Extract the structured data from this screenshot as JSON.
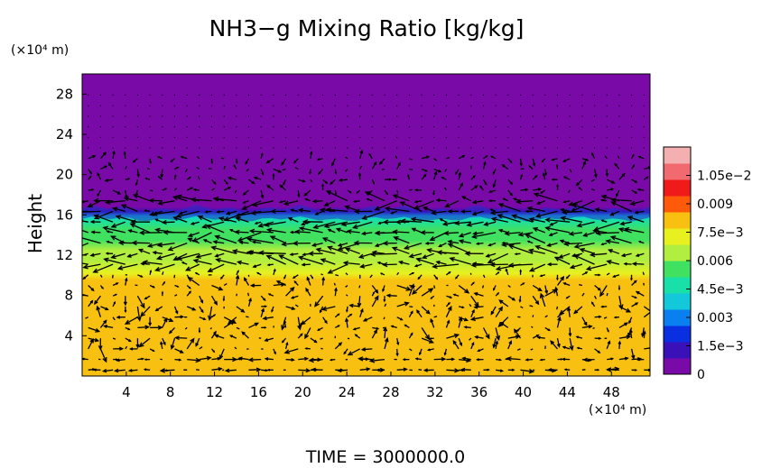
{
  "chart_data": {
    "type": "heatmap",
    "title": "NH3−g Mixing Ratio [kg/kg]",
    "ylabel": "Height",
    "y_unit": "(×10⁴ m)",
    "x_unit": "(×10⁴ m)",
    "footer": "TIME = 3000000.0",
    "xlim": [
      0,
      51.5
    ],
    "ylim": [
      0,
      30
    ],
    "x_ticks": [
      "4",
      "8",
      "12",
      "16",
      "20",
      "24",
      "28",
      "32",
      "36",
      "40",
      "44",
      "48"
    ],
    "x_tick_values": [
      4,
      8,
      12,
      16,
      20,
      24,
      28,
      32,
      36,
      40,
      44,
      48
    ],
    "y_ticks": [
      "4",
      "8",
      "12",
      "16",
      "20",
      "24",
      "28"
    ],
    "y_tick_values": [
      4,
      8,
      12,
      16,
      20,
      24,
      28
    ],
    "colorbar": {
      "ticks": [
        "0",
        "1.5e−3",
        "0.003",
        "4.5e−3",
        "0.006",
        "7.5e−3",
        "0.009",
        "1.05e−2"
      ],
      "tick_values": [
        0,
        0.0015,
        0.003,
        0.0045,
        0.006,
        0.0075,
        0.009,
        0.0105
      ],
      "range": [
        0,
        0.012
      ],
      "colors": [
        "#7a0aa8",
        "#3a10b8",
        "#0a2fe0",
        "#0a7ff0",
        "#13c8d8",
        "#19e0a8",
        "#40e060",
        "#b2ee40",
        "#e8f020",
        "#f8c010",
        "#ff5a0a",
        "#f01a1a",
        "#f06a70",
        "#f4b0b0"
      ]
    },
    "field_profile": [
      {
        "height": 0,
        "value": 0.0081
      },
      {
        "height": 9.5,
        "value": 0.0081
      },
      {
        "height": 10.2,
        "value": 0.0073
      },
      {
        "height": 11.5,
        "value": 0.0068
      },
      {
        "height": 12.5,
        "value": 0.0064
      },
      {
        "height": 13.5,
        "value": 0.0057
      },
      {
        "height": 14.5,
        "value": 0.0053
      },
      {
        "height": 15.5,
        "value": 0.0049
      },
      {
        "height": 15.9,
        "value": 0.0035
      },
      {
        "height": 16.3,
        "value": 0.0012
      },
      {
        "height": 16.8,
        "value": 0.0
      },
      {
        "height": 30,
        "value": 0.0
      }
    ]
  },
  "labels": {
    "title": "NH3−g Mixing Ratio [kg/kg]",
    "ylabel": "Height",
    "y_unit": "(×10⁴ m)",
    "x_unit": "(×10⁴ m)",
    "footer": "TIME = 3000000.0"
  }
}
